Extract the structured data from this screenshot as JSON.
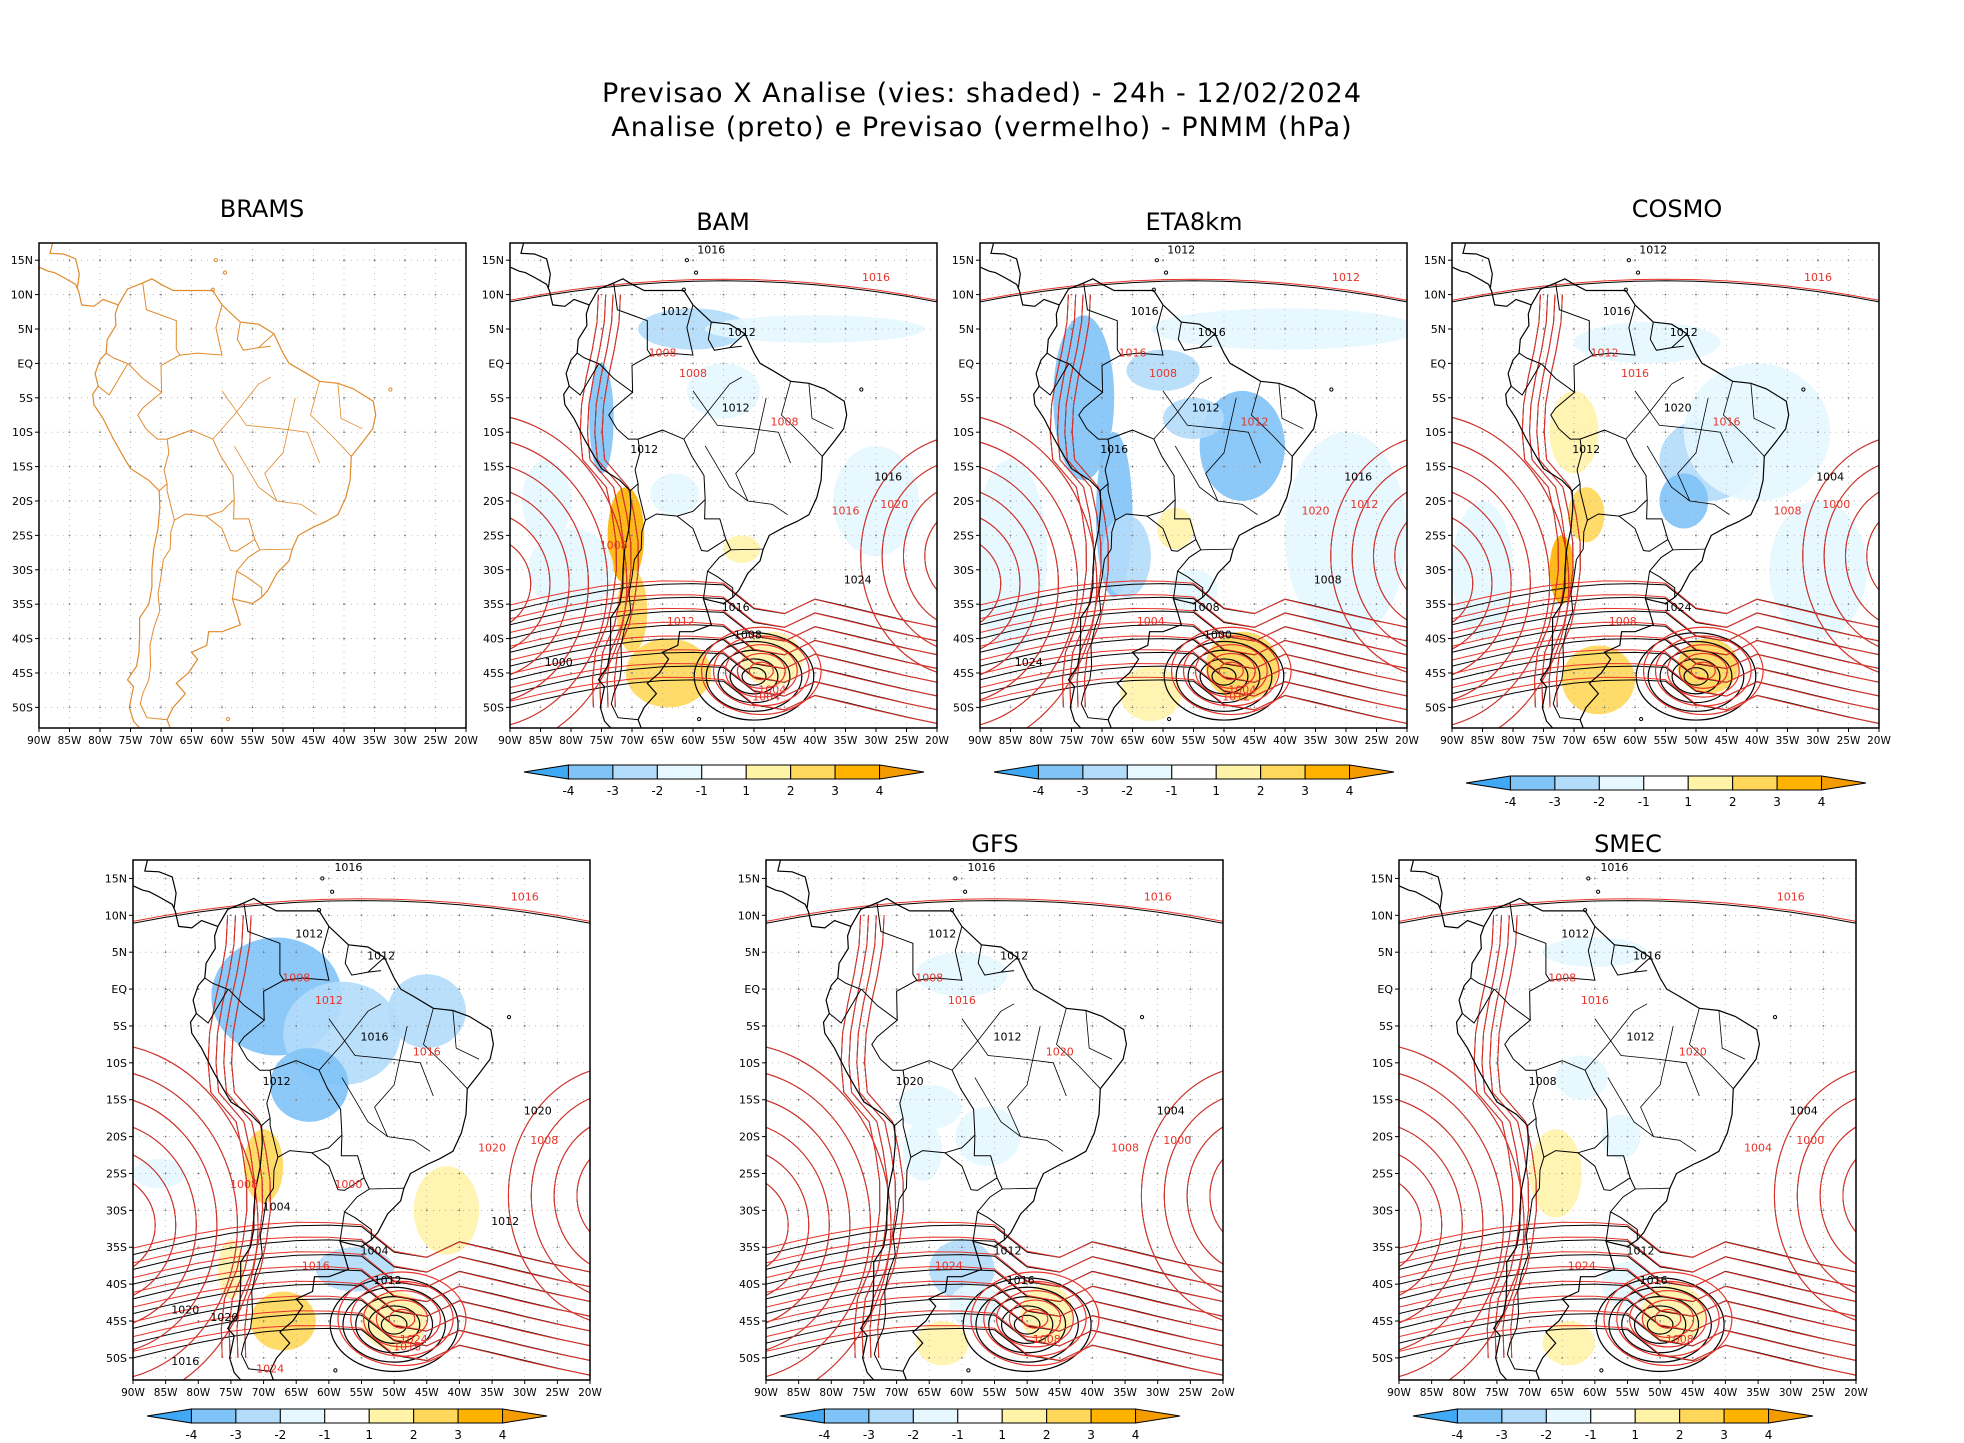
{
  "header": {
    "line1": "Previsao X Analise (vies: shaded) - 24h - 12/02/2024",
    "line2": "Analise (preto) e Previsao (vermelho) - PNMM (hPa)"
  },
  "map": {
    "lat_labels": [
      "15N",
      "10N",
      "5N",
      "EQ",
      "5S",
      "10S",
      "15S",
      "20S",
      "25S",
      "30S",
      "35S",
      "40S",
      "45S",
      "50S"
    ],
    "lon_labels": [
      "90W",
      "85W",
      "80W",
      "75W",
      "70W",
      "65W",
      "60W",
      "55W",
      "50W",
      "45W",
      "40W",
      "35W",
      "30W",
      "25W",
      "20W"
    ],
    "lon_labels_alt": [
      "90W",
      "85W",
      "80W",
      "75W",
      "70W",
      "65W",
      "60W",
      "55W",
      "50W",
      "45W",
      "40W",
      "35W",
      "30W",
      "25W",
      "2oW"
    ]
  },
  "colorbar": {
    "ticks": [
      "-4",
      "-3",
      "-2",
      "-1",
      "1",
      "2",
      "3",
      "4"
    ],
    "colors": [
      "#3fa9f5",
      "#7fc3f7",
      "#b3dcfb",
      "#e6f7ff",
      "#ffffff",
      "#fff3a8",
      "#ffd75a",
      "#ffb300",
      "#f59b00"
    ]
  },
  "colors": {
    "analysis": "#000000",
    "forecast": "#e8332a",
    "land_outline": "#e08a2c",
    "grid": "#777777"
  },
  "panels": [
    {
      "id": "brams",
      "title": "BRAMS",
      "labels": []
    },
    {
      "id": "bam",
      "title": "BAM",
      "labels": [
        "1016",
        "1016",
        "1012",
        "1008",
        "1012",
        "1008",
        "1012",
        "1008",
        "1012",
        "1016",
        "1016",
        "1020",
        "1016",
        "1012",
        "1008",
        "1004",
        "1000",
        "1004",
        "1024",
        "1008"
      ]
    },
    {
      "id": "eta8km",
      "title": "ETA8km",
      "labels": [
        "1012",
        "1012",
        "1016",
        "1016",
        "1016",
        "1008",
        "1012",
        "1012",
        "1016",
        "1020",
        "1016",
        "1012",
        "1008",
        "1004",
        "1000",
        "1004",
        "1024",
        "1012",
        "1008"
      ]
    },
    {
      "id": "cosmo",
      "title": "COSMO",
      "labels": [
        "1012",
        "1016",
        "1016",
        "1012",
        "1012",
        "1016",
        "1020",
        "1016",
        "1012",
        "1008",
        "1004",
        "1000",
        "1024",
        "1008"
      ]
    },
    {
      "id": "wrf",
      "title": "",
      "labels": [
        "1016",
        "1016",
        "1012",
        "1008",
        "1012",
        "1012",
        "1016",
        "1016",
        "1012",
        "1020",
        "1020",
        "1008",
        "1004",
        "1016",
        "1012",
        "1024",
        "1020",
        "1016",
        "1012",
        "1008",
        "1004",
        "1000",
        "1020",
        "1024",
        "1016"
      ]
    },
    {
      "id": "gfs",
      "title": "GFS",
      "labels": [
        "1016",
        "1016",
        "1012",
        "1008",
        "1012",
        "1016",
        "1012",
        "1020",
        "1020",
        "1008",
        "1004",
        "1000",
        "1012",
        "1024",
        "1016",
        "1008"
      ]
    },
    {
      "id": "smec",
      "title": "SMEC",
      "labels": [
        "1016",
        "1016",
        "1012",
        "1008",
        "1016",
        "1016",
        "1012",
        "1020",
        "1008",
        "1004",
        "1004",
        "1000",
        "1012",
        "1024",
        "1016",
        "1008"
      ]
    }
  ]
}
